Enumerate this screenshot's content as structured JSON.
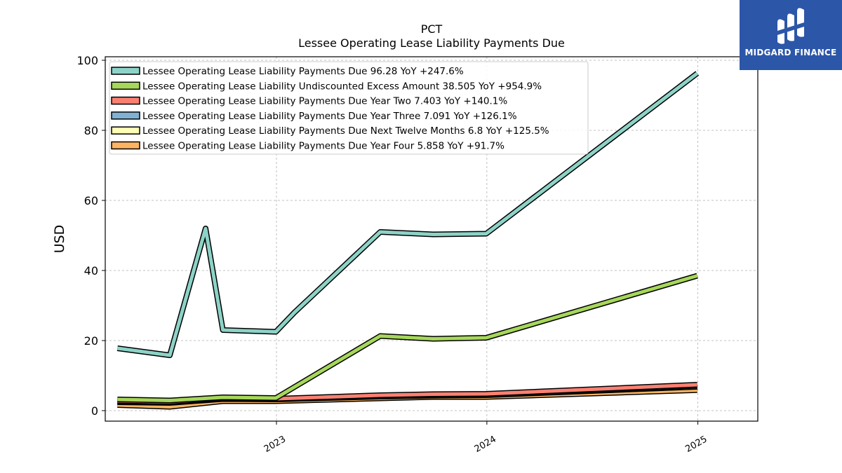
{
  "chart_data": {
    "type": "line",
    "title": "PCT",
    "subtitle": "Lessee Operating Lease Liability Payments Due",
    "ylabel": "USD",
    "xlabel": "",
    "ylim": [
      -3,
      101
    ],
    "xlim": [
      "2022-03-10",
      "2025-04-15"
    ],
    "yticks": [
      0,
      20,
      40,
      60,
      80,
      100
    ],
    "xticks": [
      "2023",
      "2024",
      "2025"
    ],
    "grid": true,
    "legend_position": "top-left",
    "series": [
      {
        "name": "Lessee Operating Lease Liability Payments Due",
        "legend_label": "Lessee Operating Lease Liability Payments Due  96.28 YoY +247.6%",
        "color": "#8dd3c7",
        "points": [
          [
            "2022-03-31",
            17.8
          ],
          [
            "2022-06-30",
            15.8
          ],
          [
            "2022-08-31",
            52.0
          ],
          [
            "2022-09-30",
            23.0
          ],
          [
            "2022-12-31",
            22.5
          ],
          [
            "2023-02-01",
            28.0
          ],
          [
            "2023-06-30",
            51.0
          ],
          [
            "2023-09-30",
            50.3
          ],
          [
            "2023-12-31",
            50.5
          ],
          [
            "2024-12-31",
            96.28
          ]
        ]
      },
      {
        "name": "Lessee Operating Lease Liability Undiscounted Excess Amount",
        "legend_label": "Lessee Operating Lease Liability Undiscounted Excess Amount  38.505 YoY +954.9%",
        "color": "#a6d75b",
        "points": [
          [
            "2022-03-31",
            3.2
          ],
          [
            "2022-06-30",
            2.9
          ],
          [
            "2022-09-30",
            3.8
          ],
          [
            "2022-12-31",
            3.6
          ],
          [
            "2023-06-30",
            21.3
          ],
          [
            "2023-09-30",
            20.5
          ],
          [
            "2023-12-31",
            20.8
          ],
          [
            "2024-12-31",
            38.505
          ]
        ]
      },
      {
        "name": "Lessee Operating Lease Liability Payments Due Year Two",
        "legend_label": "Lessee Operating Lease Liability Payments Due Year Two  7.403 YoY +140.1%",
        "color": "#fb8072",
        "points": [
          [
            "2022-03-31",
            2.8
          ],
          [
            "2022-06-30",
            2.5
          ],
          [
            "2022-09-30",
            3.6
          ],
          [
            "2022-12-31",
            3.4
          ],
          [
            "2023-06-30",
            4.4
          ],
          [
            "2023-09-30",
            4.7
          ],
          [
            "2023-12-31",
            4.8
          ],
          [
            "2024-12-31",
            7.403
          ]
        ]
      },
      {
        "name": "Lessee Operating Lease Liability Payments Due Year Three",
        "legend_label": "Lessee Operating Lease Liability Payments Due Year Three  7.091 YoY +126.1%",
        "color": "#80b1d3",
        "points": [
          [
            "2022-03-31",
            2.6
          ],
          [
            "2022-06-30",
            2.3
          ],
          [
            "2022-09-30",
            3.4
          ],
          [
            "2022-12-31",
            3.3
          ],
          [
            "2023-06-30",
            4.2
          ],
          [
            "2023-09-30",
            4.5
          ],
          [
            "2023-12-31",
            4.6
          ],
          [
            "2024-12-31",
            7.091
          ]
        ]
      },
      {
        "name": "Lessee Operating Lease Liability Payments Due Next Twelve Months",
        "legend_label": "Lessee Operating Lease Liability Payments Due Next Twelve Months  6.8 YoY +125.5%",
        "color": "#ffffb3",
        "points": [
          [
            "2022-03-31",
            2.4
          ],
          [
            "2022-06-30",
            2.2
          ],
          [
            "2022-09-30",
            3.3
          ],
          [
            "2022-12-31",
            3.2
          ],
          [
            "2023-06-30",
            4.0
          ],
          [
            "2023-09-30",
            4.3
          ],
          [
            "2023-12-31",
            4.4
          ],
          [
            "2024-12-31",
            6.8
          ]
        ]
      },
      {
        "name": "Lessee Operating Lease Liability Payments Due Year Four",
        "legend_label": "Lessee Operating Lease Liability Payments Due Year Four  5.858 YoY +91.7%",
        "color": "#fdb462",
        "points": [
          [
            "2022-03-31",
            1.6
          ],
          [
            "2022-06-30",
            1.1
          ],
          [
            "2022-09-30",
            2.7
          ],
          [
            "2022-12-31",
            2.7
          ],
          [
            "2023-06-30",
            3.5
          ],
          [
            "2023-09-30",
            3.9
          ],
          [
            "2023-12-31",
            3.9
          ],
          [
            "2024-12-31",
            5.858
          ]
        ]
      }
    ]
  },
  "logo": {
    "text": "MIDGARD FINANCE",
    "background": "#2c56a8"
  }
}
